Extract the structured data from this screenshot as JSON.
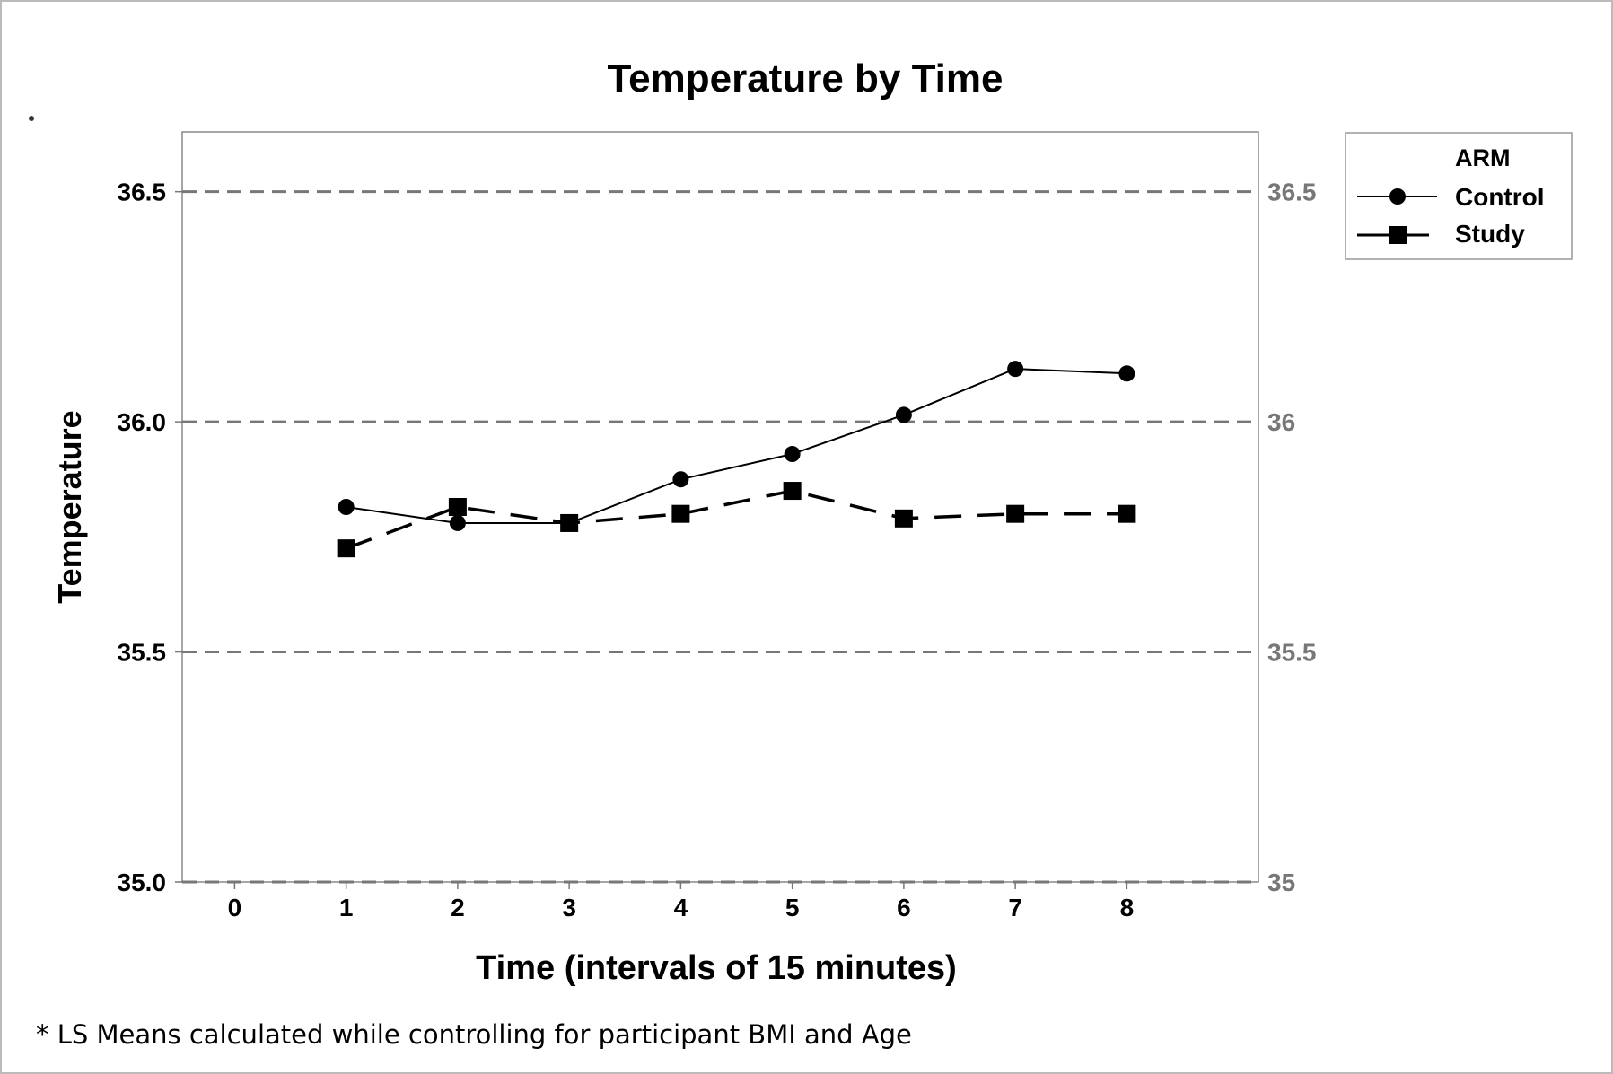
{
  "chart_data": {
    "type": "line",
    "title": "Temperature by Time",
    "xlabel": "Time (intervals of 15 minutes)",
    "ylabel": "Temperature",
    "x": [
      1,
      2,
      3,
      4,
      5,
      6,
      7,
      8
    ],
    "x_ticks": [
      "0",
      "1",
      "2",
      "3",
      "4",
      "5",
      "6",
      "7",
      "8"
    ],
    "x_tick_values": [
      0,
      1,
      2,
      3,
      4,
      5,
      6,
      7,
      8
    ],
    "xlim": [
      -0.47,
      9.18
    ],
    "ylim": [
      35.0,
      36.63
    ],
    "y_ticks_left": [
      "36.5",
      "36.0",
      "35.5",
      "35.0"
    ],
    "y_ticks_right": [
      "36.5",
      "36",
      "35.5",
      "35"
    ],
    "y_tick_values": [
      36.5,
      36.0,
      35.5,
      35.0
    ],
    "grid": "horizontal dashed",
    "legend": {
      "title": "ARM",
      "placement": "right-outside-top"
    },
    "series": [
      {
        "name": "Control",
        "marker": "circle",
        "line": "solid",
        "values": [
          35.815,
          35.78,
          35.78,
          35.875,
          35.93,
          36.015,
          36.115,
          36.105
        ]
      },
      {
        "name": "Study",
        "marker": "square",
        "line": "dashed",
        "values": [
          35.725,
          35.815,
          35.78,
          35.8,
          35.85,
          35.79,
          35.8,
          35.8
        ]
      }
    ],
    "footnote": "* LS Means calculated while controlling for participant BMI and Age"
  }
}
